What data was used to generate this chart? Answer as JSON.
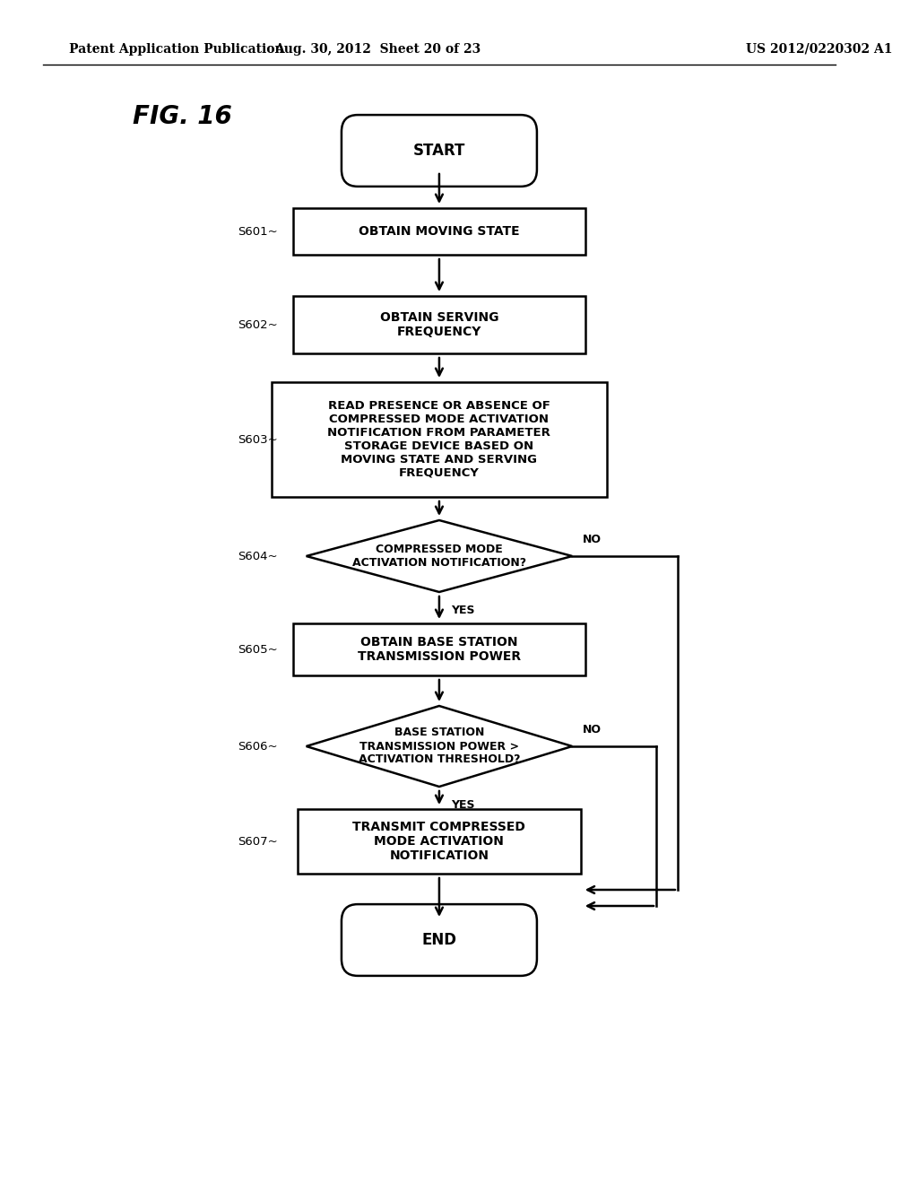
{
  "header_left": "Patent Application Publication",
  "header_middle": "Aug. 30, 2012  Sheet 20 of 23",
  "header_right": "US 2012/0220302 A1",
  "fig_label": "FIG. 16",
  "background_color": "#ffffff",
  "start_text": "START",
  "end_text": "END",
  "s601_label": "S601",
  "s602_label": "S602",
  "s603_label": "S603",
  "s604_label": "S604",
  "s605_label": "S605",
  "s606_label": "S606",
  "s607_label": "S607",
  "s601_text": "OBTAIN MOVING STATE",
  "s602_text": "OBTAIN SERVING\nFREQUENCY",
  "s603_text": "READ PRESENCE OR ABSENCE OF\nCOMPRESSED MODE ACTIVATION\nNOTIFICATION FROM PARAMETER\nSTORAGE DEVICE BASED ON\nMOVING STATE AND SERVING\nFREQUENCY",
  "s604_text": "COMPRESSED MODE\nACTIVATION NOTIFICATION?",
  "s605_text": "OBTAIN BASE STATION\nTRANSMISSION POWER",
  "s606_text": "BASE STATION\nTRANSMISSION POWER >\nACTIVATION THRESHOLD?",
  "s607_text": "TRANSMIT COMPRESSED\nMODE ACTIVATION\nNOTIFICATION",
  "yes_text": "YES",
  "no_text": "NO"
}
